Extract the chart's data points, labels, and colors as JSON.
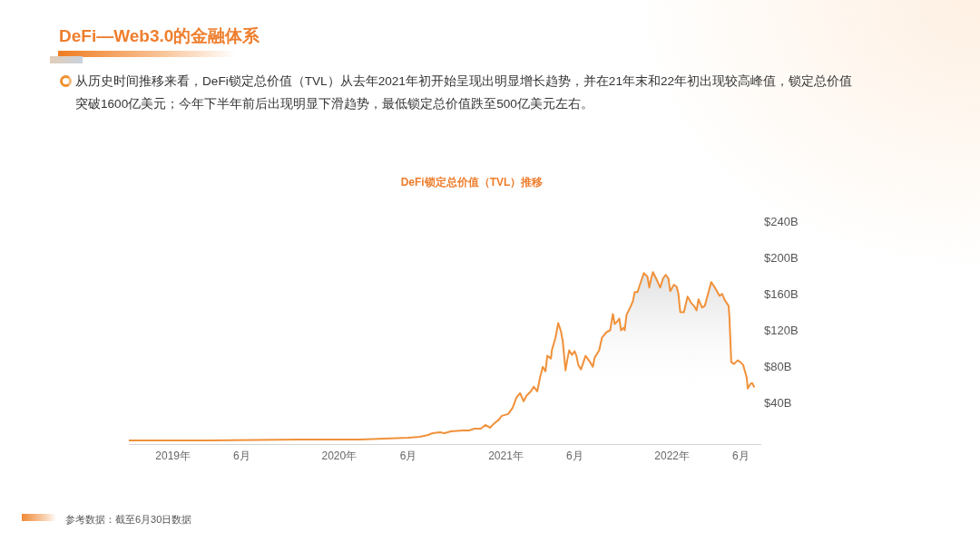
{
  "chart_data": {
    "type": "area",
    "title": "DeFi锁定总价值（TVL）推移",
    "annotations": [
      "DeFi—Web3.0的金融体系",
      "从历史时间推移来看，DeFi锁定总价值（TVL）从去年2021年初开始呈现出明显增长趋势，并在21年末和22年初出现较高峰值，锁定总价值突破1600亿美元；今年下半年前后出现明显下滑趋势，最低锁定总价值跌至500亿美元左右。",
      "参考数据：截至6月30日数据"
    ],
    "x": [
      "2018-09-26",
      "2019-03-20",
      "2019-10-05",
      "2020-02-16",
      "2020-04-08",
      "2020-06-01",
      "2020-06-26",
      "2020-07-14",
      "2020-07-24",
      "2020-08-09",
      "2020-08-19",
      "2020-09-02",
      "2020-09-28",
      "2020-10-12",
      "2020-10-24",
      "2020-11-07",
      "2020-11-17",
      "2020-11-27",
      "2020-12-07",
      "2020-12-17",
      "2020-12-23",
      "2021-01-06",
      "2021-01-16",
      "2021-01-24",
      "2021-02-01",
      "2021-02-09",
      "2021-02-15",
      "2021-02-25",
      "2021-03-03",
      "2021-03-11",
      "2021-03-17",
      "2021-03-23",
      "2021-03-29",
      "2021-04-02",
      "2021-04-10",
      "2021-04-12",
      "2021-04-20",
      "2021-04-26",
      "2021-05-02",
      "2021-05-06",
      "2021-05-12",
      "2021-05-16",
      "2021-05-20",
      "2021-05-26",
      "2021-06-01",
      "2021-06-05",
      "2021-06-09",
      "2021-06-15",
      "2021-06-25",
      "2021-07-05",
      "2021-07-11",
      "2021-07-15",
      "2021-07-25",
      "2021-07-31",
      "2021-08-10",
      "2021-08-18",
      "2021-08-24",
      "2021-08-28",
      "2021-09-03",
      "2021-09-07",
      "2021-09-11",
      "2021-09-17",
      "2021-09-19",
      "2021-09-23",
      "2021-10-01",
      "2021-10-07",
      "2021-10-11",
      "2021-10-17",
      "2021-10-21",
      "2021-10-31",
      "2021-11-08",
      "2021-11-12",
      "2021-11-16",
      "2021-11-20",
      "2021-11-28",
      "2021-12-06",
      "2021-12-12",
      "2021-12-18",
      "2021-12-24",
      "2021-12-28",
      "2022-01-05",
      "2022-01-11",
      "2022-01-15",
      "2022-01-19",
      "2022-01-27",
      "2022-02-04",
      "2022-02-12",
      "2022-02-18",
      "2022-02-24",
      "2022-02-28",
      "2022-03-08",
      "2022-03-14",
      "2022-03-22",
      "2022-03-28",
      "2022-04-05",
      "2022-04-15",
      "2022-04-21",
      "2022-04-27",
      "2022-05-05",
      "2022-05-07",
      "2022-05-11",
      "2022-05-17",
      "2022-05-25",
      "2022-05-31",
      "2022-06-06",
      "2022-06-14",
      "2022-06-16",
      "2022-06-22",
      "2022-06-26",
      "2022-06-30"
    ],
    "values": [
      0,
      0,
      1,
      1,
      2,
      3,
      4,
      6,
      8,
      9,
      8,
      10,
      11,
      11,
      13,
      13,
      17,
      14,
      19,
      23,
      27,
      29,
      36,
      47,
      52,
      43,
      49,
      54,
      59,
      54,
      69,
      81,
      76,
      93,
      90,
      99,
      113,
      129,
      120,
      109,
      77,
      89,
      99,
      94,
      98,
      93,
      83,
      78,
      93,
      86,
      81,
      91,
      99,
      113,
      119,
      121,
      139,
      128,
      131,
      134,
      121,
      124,
      121,
      138,
      146,
      153,
      163,
      163,
      169,
      184,
      180,
      168,
      178,
      185,
      177,
      168,
      178,
      182,
      178,
      164,
      171,
      169,
      161,
      141,
      141,
      158,
      151,
      148,
      143,
      155,
      146,
      148,
      163,
      174,
      168,
      159,
      161,
      154,
      148,
      136,
      86,
      84,
      88,
      86,
      83,
      69,
      57,
      62,
      63,
      59
    ],
    "color": "#f0913a",
    "marker": "none",
    "xlim": [
      "2018-09-26",
      "2022-07-14"
    ],
    "xticks": [
      {
        "value": "2019-01-01",
        "label": "2019年"
      },
      {
        "value": "2019-06-01",
        "label": "6月"
      },
      {
        "value": "2020-01-01",
        "label": "2020年"
      },
      {
        "value": "2020-06-01",
        "label": "6月"
      },
      {
        "value": "2021-01-01",
        "label": "2021年"
      },
      {
        "value": "2021-06-01",
        "label": "6月"
      },
      {
        "value": "2022-01-01",
        "label": "2022年"
      },
      {
        "value": "2022-06-01",
        "label": "6月"
      }
    ],
    "ylim": [
      -4,
      240
    ],
    "yticks": [
      {
        "value": 40,
        "label": "$40B"
      },
      {
        "value": 80,
        "label": "$80B"
      },
      {
        "value": 120,
        "label": "$120B"
      },
      {
        "value": 160,
        "label": "$160B"
      },
      {
        "value": 200,
        "label": "$200B"
      },
      {
        "value": 240,
        "label": "$240B"
      }
    ]
  }
}
